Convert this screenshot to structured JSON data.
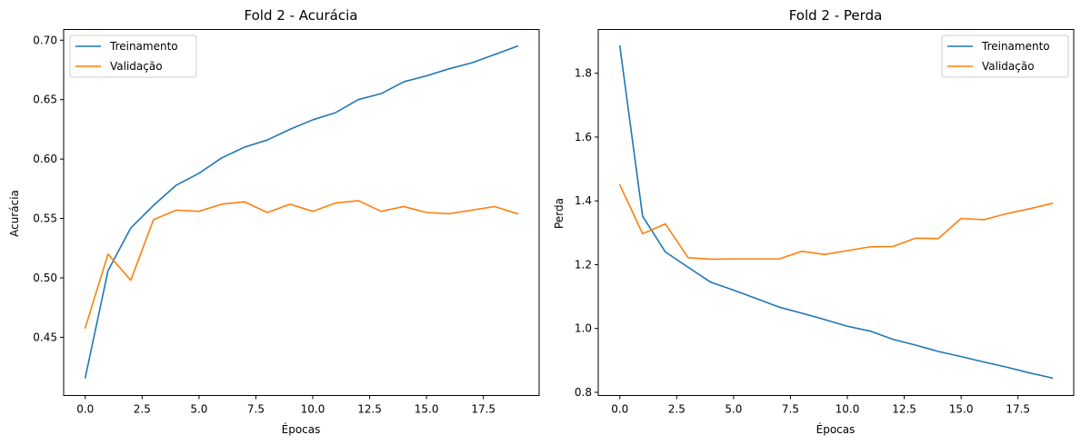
{
  "colors": {
    "train": "#1f77b4",
    "val": "#ff7f0e"
  },
  "chart_data": [
    {
      "type": "line",
      "title": "Fold 2 - Acurácia",
      "xlabel": "Épocas",
      "ylabel": "Acurácia",
      "xlim": [
        -0.95,
        19.95
      ],
      "ylim": [
        0.401,
        0.709
      ],
      "xticks": [
        0.0,
        2.5,
        5.0,
        7.5,
        10.0,
        12.5,
        15.0,
        17.5
      ],
      "xtick_labels": [
        "0.0",
        "2.5",
        "5.0",
        "7.5",
        "10.0",
        "12.5",
        "15.0",
        "17.5"
      ],
      "yticks": [
        0.45,
        0.5,
        0.55,
        0.6,
        0.65,
        0.7
      ],
      "ytick_labels": [
        "0.45",
        "0.50",
        "0.55",
        "0.60",
        "0.65",
        "0.70"
      ],
      "legend_position": "upper-left",
      "x": [
        0,
        1,
        2,
        3,
        4,
        5,
        6,
        7,
        8,
        9,
        10,
        11,
        12,
        13,
        14,
        15,
        16,
        17,
        18,
        19
      ],
      "series": [
        {
          "name": "Treinamento",
          "color_key": "train",
          "values": [
            0.416,
            0.506,
            0.542,
            0.561,
            0.578,
            0.588,
            0.601,
            0.61,
            0.616,
            0.625,
            0.633,
            0.639,
            0.65,
            0.655,
            0.665,
            0.67,
            0.676,
            0.681,
            0.688,
            0.695
          ]
        },
        {
          "name": "Validação",
          "color_key": "val",
          "values": [
            0.458,
            0.52,
            0.498,
            0.549,
            0.557,
            0.556,
            0.562,
            0.564,
            0.555,
            0.562,
            0.556,
            0.563,
            0.565,
            0.556,
            0.56,
            0.555,
            0.554,
            0.557,
            0.56,
            0.554
          ]
        }
      ]
    },
    {
      "type": "line",
      "title": "Fold 2 - Perda",
      "xlabel": "Épocas",
      "ylabel": "Perda",
      "xlim": [
        -0.95,
        19.95
      ],
      "ylim": [
        0.79,
        1.937
      ],
      "xticks": [
        0.0,
        2.5,
        5.0,
        7.5,
        10.0,
        12.5,
        15.0,
        17.5
      ],
      "xtick_labels": [
        "0.0",
        "2.5",
        "5.0",
        "7.5",
        "10.0",
        "12.5",
        "15.0",
        "17.5"
      ],
      "yticks": [
        0.8,
        1.0,
        1.2,
        1.4,
        1.6,
        1.8
      ],
      "ytick_labels": [
        "0.8",
        "1.0",
        "1.2",
        "1.4",
        "1.6",
        "1.8"
      ],
      "legend_position": "upper-right",
      "x": [
        0,
        1,
        2,
        3,
        4,
        5,
        6,
        7,
        8,
        9,
        10,
        11,
        12,
        13,
        14,
        15,
        16,
        17,
        18,
        19
      ],
      "series": [
        {
          "name": "Treinamento",
          "color_key": "train",
          "values": [
            1.885,
            1.352,
            1.24,
            1.192,
            1.145,
            1.12,
            1.094,
            1.067,
            1.048,
            1.028,
            1.007,
            0.992,
            0.966,
            0.948,
            0.928,
            0.912,
            0.895,
            0.879,
            0.861,
            0.845
          ]
        },
        {
          "name": "Validação",
          "color_key": "val",
          "values": [
            1.45,
            1.297,
            1.328,
            1.222,
            1.217,
            1.218,
            1.218,
            1.218,
            1.242,
            1.232,
            1.244,
            1.256,
            1.257,
            1.283,
            1.282,
            1.345,
            1.341,
            1.36,
            1.375,
            1.392
          ]
        }
      ]
    }
  ]
}
